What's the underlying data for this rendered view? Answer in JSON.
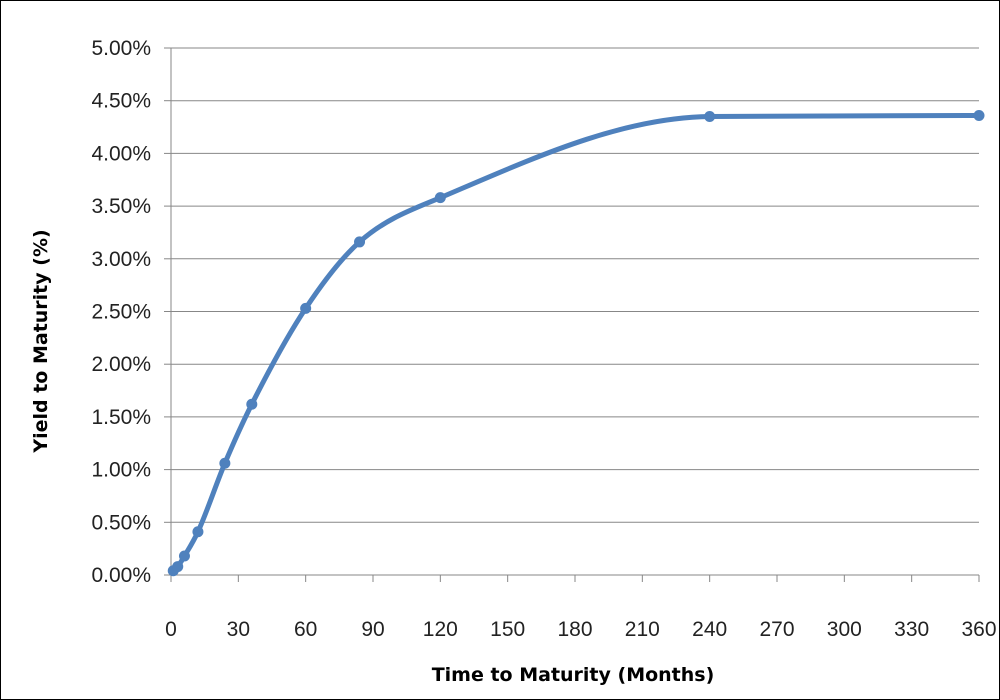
{
  "chart_data": {
    "type": "line",
    "title": "",
    "xlabel": "Time to Maturity (Months)",
    "ylabel": "Yield to Maturity (%)",
    "xlim": [
      0,
      360
    ],
    "ylim": [
      0,
      0.05
    ],
    "xticks": [
      0,
      30,
      60,
      90,
      120,
      150,
      180,
      210,
      240,
      270,
      300,
      330,
      360
    ],
    "yticks": [
      0,
      0.005,
      0.01,
      0.015,
      0.02,
      0.025,
      0.03,
      0.035,
      0.04,
      0.045,
      0.05
    ],
    "xtick_labels": [
      "0",
      "30",
      "60",
      "90",
      "120",
      "150",
      "180",
      "210",
      "240",
      "270",
      "300",
      "330",
      "360"
    ],
    "ytick_labels": [
      "0.00%",
      "0.50%",
      "1.00%",
      "1.50%",
      "2.00%",
      "2.50%",
      "3.00%",
      "3.50%",
      "4.00%",
      "4.50%",
      "5.00%"
    ],
    "grid": true,
    "legend": "none",
    "series": [
      {
        "color": "#4F81BD",
        "smooth": true,
        "x": [
          1,
          3,
          6,
          12,
          24,
          36,
          60,
          84,
          120,
          240,
          360
        ],
        "y": [
          0.0004,
          0.0008,
          0.0018,
          0.0041,
          0.0106,
          0.0162,
          0.0253,
          0.0316,
          0.0358,
          0.0435,
          0.0436
        ]
      }
    ]
  }
}
